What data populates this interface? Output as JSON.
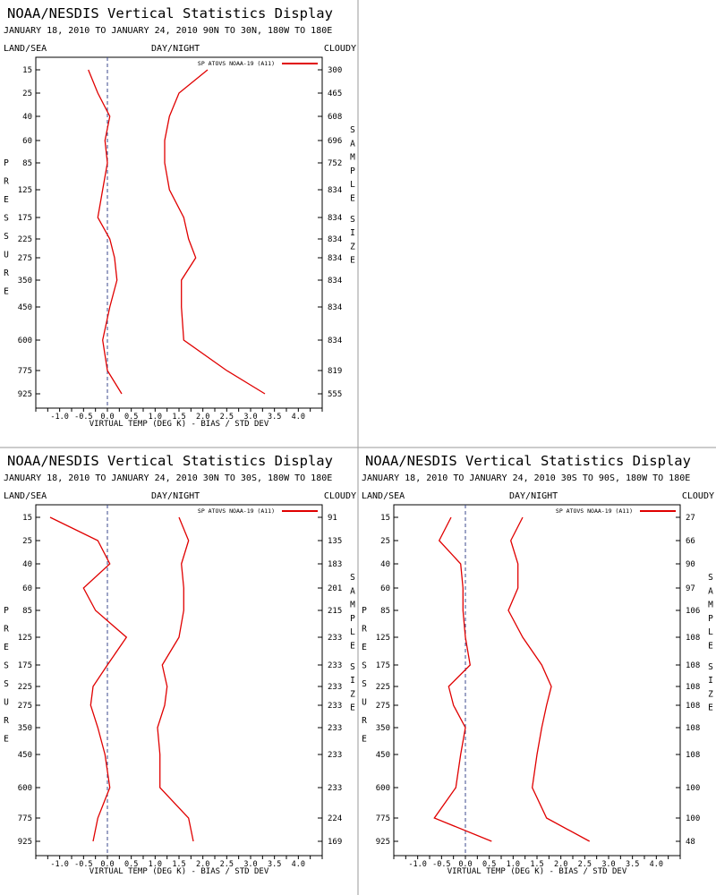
{
  "colors": {
    "line": "#e00000",
    "zero_line": "#3b4a8c",
    "frame": "#000000",
    "divider": "#9a9a9a"
  },
  "common": {
    "main_title": "NOAA/NESDIS Vertical Statistics Display",
    "date_range": "JANUARY 18, 2010 TO JANUARY 24, 2010",
    "land_sea": "LAND/SEA",
    "day_night": "DAY/NIGHT",
    "cloudy": "CLOUDY",
    "legend_label": "SP ATOVS NOAA-19 (A11)",
    "xlabel": "VIRTUAL TEMP (DEG K) - BIAS / STD DEV",
    "ylabel": "PRESSURE",
    "right_label": "SAMPLE SIZE",
    "x_ticks": [
      "-1.0",
      "-0.5",
      "0.0",
      "0.5",
      "1.0",
      "1.5",
      "2.0",
      "2.5",
      "3.0",
      "3.5",
      "4.0"
    ],
    "pressure_levels": [
      "15",
      "25",
      "40",
      "60",
      "85",
      "125",
      "175",
      "225",
      "275",
      "350",
      "450",
      "600",
      "775",
      "925"
    ]
  },
  "chart_data": [
    {
      "type": "line",
      "region": "90N TO 30N, 180W TO 180E",
      "xlim": [
        -1.5,
        4.5
      ],
      "series": [
        {
          "name": "bias",
          "values": [
            -0.4,
            -0.2,
            0.05,
            -0.05,
            0.0,
            -0.1,
            -0.2,
            0.05,
            0.15,
            0.2,
            0.05,
            -0.1,
            0.0,
            0.3
          ]
        },
        {
          "name": "std_dev",
          "values": [
            2.1,
            1.5,
            1.3,
            1.2,
            1.2,
            1.3,
            1.6,
            1.7,
            1.85,
            1.55,
            1.55,
            1.6,
            2.5,
            3.3
          ]
        }
      ],
      "sample_sizes": [
        "300",
        "465",
        "608",
        "696",
        "752",
        "834",
        "834",
        "834",
        "834",
        "834",
        "834",
        "834",
        "819",
        "555"
      ]
    },
    {
      "type": "line",
      "region": "30N TO 30S, 180W TO 180E",
      "xlim": [
        -1.5,
        4.5
      ],
      "series": [
        {
          "name": "bias",
          "values": [
            -1.2,
            -0.2,
            0.05,
            -0.5,
            -0.25,
            0.4,
            0.0,
            -0.3,
            -0.35,
            -0.2,
            -0.05,
            0.05,
            -0.2,
            -0.3
          ]
        },
        {
          "name": "std_dev",
          "values": [
            1.5,
            1.7,
            1.55,
            1.6,
            1.6,
            1.5,
            1.15,
            1.25,
            1.2,
            1.05,
            1.1,
            1.1,
            1.7,
            1.8
          ]
        }
      ],
      "sample_sizes": [
        "91",
        "135",
        "183",
        "201",
        "215",
        "233",
        "233",
        "233",
        "233",
        "233",
        "233",
        "233",
        "224",
        "169"
      ]
    },
    {
      "type": "line",
      "region": "30S TO 90S, 180W TO 180E",
      "xlim": [
        -1.5,
        4.5
      ],
      "series": [
        {
          "name": "bias",
          "values": [
            -0.3,
            -0.55,
            -0.1,
            -0.05,
            -0.05,
            0.0,
            0.1,
            -0.35,
            -0.25,
            0.0,
            -0.1,
            -0.2,
            -0.65,
            0.55
          ]
        },
        {
          "name": "std_dev",
          "values": [
            1.2,
            0.95,
            1.1,
            1.1,
            0.9,
            1.2,
            1.6,
            1.8,
            1.7,
            1.6,
            1.5,
            1.4,
            1.7,
            2.6
          ]
        }
      ],
      "sample_sizes": [
        "27",
        "66",
        "90",
        "97",
        "106",
        "108",
        "108",
        "108",
        "108",
        "108",
        "108",
        "100",
        "100",
        "48"
      ]
    }
  ]
}
